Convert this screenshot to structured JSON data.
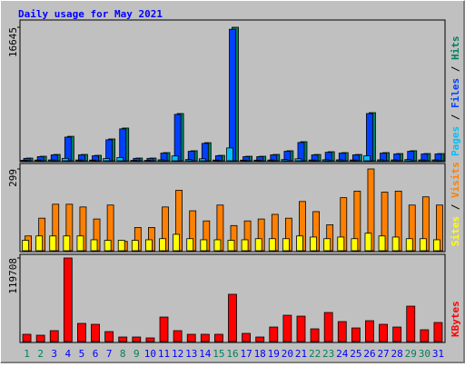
{
  "chart_data": [
    {
      "type": "bar",
      "title": "Daily usage for May 2021",
      "label_separator": " / ",
      "ylim": [
        0,
        16645
      ],
      "yticks": [
        16645
      ],
      "series": [
        {
          "name": "Pages",
          "color": "#00c0ff",
          "values": [
            60,
            90,
            110,
            300,
            100,
            90,
            280,
            400,
            50,
            50,
            120,
            600,
            150,
            250,
            90,
            1600,
            80,
            80,
            100,
            150,
            250,
            100,
            130,
            120,
            100,
            620,
            120,
            110,
            150,
            110,
            110
          ]
        },
        {
          "name": "Files",
          "color": "#0040ff",
          "values": [
            300,
            520,
            740,
            2950,
            740,
            630,
            2620,
            3980,
            300,
            300,
            960,
            5780,
            1180,
            2170,
            630,
            16400,
            520,
            520,
            740,
            1180,
            2280,
            740,
            1060,
            960,
            740,
            5890,
            960,
            850,
            1180,
            850,
            850
          ]
        },
        {
          "name": "Hits",
          "color": "#00805c",
          "values": [
            340,
            565,
            790,
            3050,
            790,
            680,
            2720,
            4080,
            340,
            340,
            1020,
            5890,
            1250,
            2260,
            680,
            16645,
            565,
            565,
            790,
            1250,
            2380,
            790,
            1130,
            1020,
            790,
            6000,
            1020,
            900,
            1250,
            900,
            900
          ]
        }
      ]
    },
    {
      "type": "bar",
      "label_separator": " / ",
      "ylim": [
        0,
        299
      ],
      "yticks": [
        299
      ],
      "series": [
        {
          "name": "Sites",
          "color": "#ffff00",
          "values": [
            38,
            54,
            54,
            54,
            54,
            40,
            38,
            38,
            38,
            40,
            44,
            60,
            44,
            40,
            40,
            38,
            40,
            44,
            44,
            44,
            54,
            50,
            44,
            50,
            44,
            64,
            54,
            50,
            44,
            44,
            40
          ]
        },
        {
          "name": "Visits",
          "color": "#ff8000",
          "values": [
            54,
            119,
            170,
            170,
            160,
            116,
            167,
            34,
            85,
            85,
            160,
            221,
            146,
            109,
            167,
            92,
            109,
            116,
            133,
            119,
            180,
            143,
            95,
            194,
            218,
            299,
            214,
            218,
            167,
            197,
            167
          ]
        }
      ]
    },
    {
      "type": "bar",
      "label_separator": " / ",
      "ylim": [
        0,
        119708
      ],
      "yticks": [
        119708
      ],
      "categories": [
        "1",
        "2",
        "3",
        "4",
        "5",
        "6",
        "7",
        "8",
        "9",
        "10",
        "11",
        "12",
        "13",
        "14",
        "15",
        "16",
        "17",
        "18",
        "19",
        "20",
        "21",
        "22",
        "23",
        "24",
        "25",
        "26",
        "27",
        "28",
        "29",
        "30",
        "31"
      ],
      "category_colors": [
        "#00805c",
        "#00805c",
        "#0000ff",
        "#0000ff",
        "#0000ff",
        "#0000ff",
        "#0000ff",
        "#00805c",
        "#00805c",
        "#0000ff",
        "#0000ff",
        "#0000ff",
        "#0000ff",
        "#0000ff",
        "#00805c",
        "#00805c",
        "#0000ff",
        "#0000ff",
        "#0000ff",
        "#0000ff",
        "#0000ff",
        "#00805c",
        "#00805c",
        "#0000ff",
        "#0000ff",
        "#0000ff",
        "#0000ff",
        "#0000ff",
        "#00805c",
        "#00805c",
        "#0000ff"
      ],
      "series": [
        {
          "name": "KBytes",
          "color": "#ff0000",
          "values": [
            10400,
            9100,
            15600,
            119708,
            26000,
            24700,
            14300,
            6500,
            6500,
            5200,
            35100,
            15600,
            10400,
            10400,
            10400,
            67700,
            11700,
            6500,
            20800,
            37700,
            36400,
            18200,
            41600,
            28600,
            19500,
            29900,
            24700,
            20800,
            50700,
            16900,
            27300
          ]
        }
      ]
    }
  ]
}
